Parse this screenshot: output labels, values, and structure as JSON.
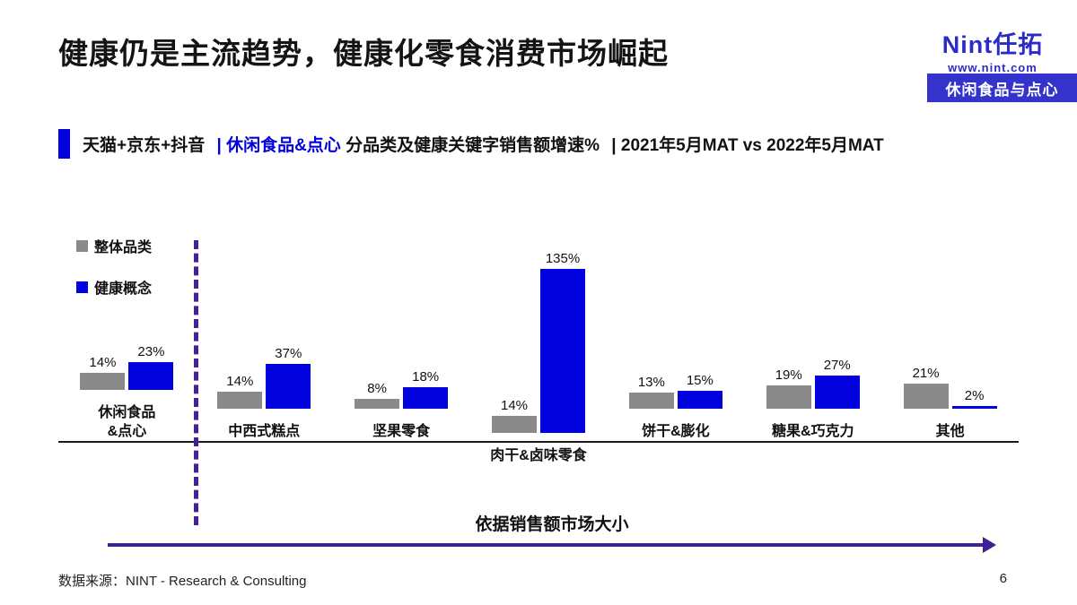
{
  "page": {
    "title": "健康仍是主流趋势，健康化零食消费市场崛起",
    "footer_source": "数据来源：NINT - Research & Consulting",
    "page_number": "6"
  },
  "brand": {
    "logo_text": "Nint任拓",
    "logo_url": "www.nint.com",
    "badge": "休闲食品与点心",
    "brand_blue": "#2b2bc8",
    "badge_blue": "#3434cc"
  },
  "subtitle": {
    "seg_platforms": "天猫+京东+抖音",
    "seg_category": "| 休闲食品&点心",
    "seg_metric": "分品类及健康关键字销售额增速%",
    "seg_period": "| 2021年5月MAT vs 2022年5月MAT"
  },
  "colors": {
    "bar_gray": "#8a8a8a",
    "bar_blue": "#0101dd",
    "accent_purple": "#3f2096",
    "title_black": "#141414"
  },
  "chart_data": {
    "type": "bar",
    "categories": [
      "休闲食品\n&点心",
      "中西式糕点",
      "坚果零食",
      "肉干&卤味零食",
      "饼干&膨化",
      "糖果&巧克力",
      "其他"
    ],
    "series": [
      {
        "name": "整体品类",
        "color": "#8a8a8a",
        "values": [
          14,
          14,
          8,
          14,
          13,
          19,
          21
        ]
      },
      {
        "name": "健康概念",
        "color": "#0101dd",
        "values": [
          23,
          37,
          18,
          135,
          15,
          27,
          2
        ]
      }
    ],
    "value_suffix": "%",
    "title": "",
    "xlabel": "",
    "ylabel": "",
    "ylim": [
      0,
      135
    ],
    "grid": false,
    "legend_position": "top-left",
    "annotation": "依据销售额市场大小",
    "separator_after_category_index": 0
  }
}
